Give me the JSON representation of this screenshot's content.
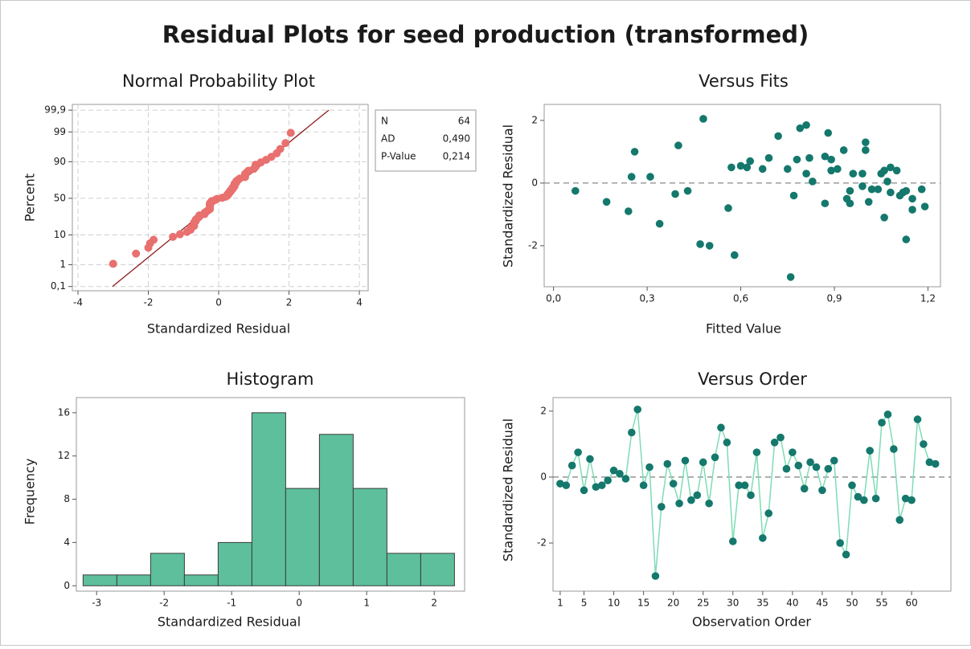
{
  "title": "Residual Plots for seed production (transformed)",
  "chart_data": [
    {
      "type": "probability",
      "title": "Normal Probability Plot",
      "xlabel": "Standardized Residual",
      "ylabel": "Percent",
      "yscale": "probability",
      "grid": true,
      "color": "#e8706f",
      "fit_color": "#8b1a1a",
      "xlim": [
        -4.16,
        4.25
      ],
      "xticks": [
        -4,
        -2,
        0,
        2,
        4
      ],
      "ylim": [
        0.06,
        99.95
      ],
      "yticks": [
        {
          "value": 0.1,
          "label": "0,1"
        },
        1,
        10,
        50,
        90,
        99,
        {
          "value": 99.9,
          "label": "99,9"
        }
      ],
      "x": [
        -3.0,
        -2.35,
        -2.0,
        -1.95,
        -1.85,
        -1.3,
        -1.1,
        -0.9,
        -0.8,
        -0.8,
        -0.7,
        -0.7,
        -0.7,
        -0.65,
        -0.65,
        -0.6,
        -0.55,
        -0.55,
        -0.4,
        -0.4,
        -0.35,
        -0.3,
        -0.25,
        -0.25,
        -0.25,
        -0.25,
        -0.25,
        -0.25,
        -0.2,
        -0.2,
        -0.1,
        -0.05,
        0.1,
        0.2,
        0.25,
        0.25,
        0.3,
        0.3,
        0.35,
        0.35,
        0.4,
        0.4,
        0.45,
        0.45,
        0.45,
        0.5,
        0.5,
        0.55,
        0.6,
        0.75,
        0.75,
        0.75,
        0.8,
        0.85,
        1.0,
        1.05,
        1.05,
        1.2,
        1.35,
        1.5,
        1.65,
        1.75,
        1.9,
        2.05
      ],
      "values": [
        1.09,
        2.64,
        4.19,
        5.75,
        7.3,
        8.85,
        10.4,
        11.96,
        13.51,
        15.06,
        16.61,
        18.17,
        19.72,
        21.27,
        22.83,
        24.38,
        25.93,
        27.48,
        29.04,
        30.59,
        32.14,
        33.7,
        35.25,
        36.8,
        38.35,
        39.91,
        41.46,
        43.01,
        44.57,
        46.12,
        47.67,
        49.22,
        50.78,
        52.33,
        53.88,
        55.43,
        56.99,
        58.54,
        60.09,
        61.65,
        63.2,
        64.75,
        66.3,
        67.86,
        69.41,
        70.96,
        72.52,
        74.07,
        75.62,
        77.17,
        78.73,
        80.28,
        81.83,
        83.39,
        84.94,
        86.49,
        88.04,
        89.6,
        91.15,
        92.7,
        94.25,
        95.81,
        97.36,
        98.91
      ],
      "fit_line": {
        "x": [
          -3.02,
          3.13
        ],
        "values": [
          0.1,
          99.9
        ]
      },
      "stats": [
        {
          "name": "N",
          "value": 64
        },
        {
          "name": "AD",
          "value": 0.49,
          "label": "0,490"
        },
        {
          "name": "P-Value",
          "value": 0.214,
          "label": "0,214"
        }
      ]
    },
    {
      "type": "scatter",
      "title": "Versus Fits",
      "xlabel": "Fitted Value",
      "ylabel": "Standardized Residual",
      "color": "#14786c",
      "ref_line": 0,
      "xlim": [
        -0.03,
        1.24
      ],
      "xticks": [
        {
          "value": 0,
          "label": "0,0"
        },
        {
          "value": 0.3,
          "label": "0,3"
        },
        {
          "value": 0.6,
          "label": "0,6"
        },
        {
          "value": 0.9,
          "label": "0,9"
        },
        {
          "value": 1.2,
          "label": "1,2"
        }
      ],
      "ylim": [
        -3.31,
        2.51
      ],
      "yticks": [
        -2,
        0,
        2
      ],
      "x": [
        0.07,
        0.17,
        0.24,
        0.25,
        0.26,
        0.31,
        0.34,
        0.39,
        0.4,
        0.43,
        0.47,
        0.48,
        0.5,
        0.56,
        0.57,
        0.58,
        0.6,
        0.62,
        0.63,
        0.67,
        0.69,
        0.72,
        0.75,
        0.76,
        0.77,
        0.78,
        0.79,
        0.81,
        0.81,
        0.82,
        0.83,
        0.87,
        0.87,
        0.88,
        0.89,
        0.89,
        0.91,
        0.93,
        0.94,
        0.95,
        0.95,
        0.96,
        0.99,
        0.99,
        1.0,
        1.0,
        1.01,
        1.02,
        1.04,
        1.05,
        1.06,
        1.06,
        1.07,
        1.08,
        1.08,
        1.1,
        1.11,
        1.12,
        1.13,
        1.13,
        1.15,
        1.15,
        1.18,
        1.19
      ],
      "values": [
        -0.25,
        -0.6,
        -0.9,
        0.2,
        1.0,
        0.2,
        -1.3,
        -0.35,
        1.2,
        -0.25,
        -1.95,
        2.05,
        -2.0,
        -0.8,
        0.5,
        -2.3,
        0.55,
        0.5,
        0.7,
        0.45,
        0.8,
        1.5,
        0.45,
        -3.0,
        -0.4,
        0.75,
        1.75,
        1.85,
        0.3,
        0.8,
        0.05,
        -0.65,
        0.85,
        1.6,
        0.4,
        0.75,
        0.45,
        1.05,
        -0.5,
        -0.65,
        -0.25,
        0.3,
        0.3,
        -0.1,
        1.05,
        1.3,
        -0.6,
        -0.2,
        -0.2,
        0.3,
        -1.1,
        0.4,
        0.05,
        0.5,
        -0.3,
        0.4,
        -0.4,
        -0.3,
        -1.8,
        -0.25,
        -0.5,
        -0.85,
        -0.2,
        -0.75
      ]
    },
    {
      "type": "histogram",
      "title": "Histogram",
      "xlabel": "Standardized Residual",
      "ylabel": "Frequency",
      "color": "#5dbf9b",
      "edge_color": "#3c3c3c",
      "xlim": [
        -3.3,
        2.45
      ],
      "xticks": [
        -3,
        -2,
        -1,
        0,
        1,
        2
      ],
      "ylim": [
        -0.5,
        17.4
      ],
      "yticks": [
        0,
        4,
        8,
        12,
        16
      ],
      "bins": [
        -3.2,
        -2.7,
        -2.2,
        -1.7,
        -1.2,
        -0.7,
        -0.2,
        0.3,
        0.8,
        1.3,
        1.8,
        2.3
      ],
      "values": [
        1,
        1,
        3,
        1,
        4,
        16,
        9,
        14,
        9,
        3,
        3
      ]
    },
    {
      "type": "line",
      "title": "Versus Order",
      "xlabel": "Observation Order",
      "ylabel": "Standardized Residual",
      "color": "#14786c",
      "line_color": "#7fdcb6",
      "ref_line": 0,
      "xlim": [
        -0.2,
        66.6
      ],
      "xticks": [
        1,
        5,
        10,
        15,
        20,
        25,
        30,
        35,
        40,
        45,
        50,
        55,
        60
      ],
      "ylim": [
        -3.46,
        2.41
      ],
      "yticks": [
        -2,
        0,
        2
      ],
      "x": [
        1,
        2,
        3,
        4,
        5,
        6,
        7,
        8,
        9,
        10,
        11,
        12,
        13,
        14,
        15,
        16,
        17,
        18,
        19,
        20,
        21,
        22,
        23,
        24,
        25,
        26,
        27,
        28,
        29,
        30,
        31,
        32,
        33,
        34,
        35,
        36,
        37,
        38,
        39,
        40,
        41,
        42,
        43,
        44,
        45,
        46,
        47,
        48,
        49,
        50,
        51,
        52,
        53,
        54,
        55,
        56,
        57,
        58,
        59,
        60,
        61,
        62,
        63,
        64
      ],
      "values": [
        -0.2,
        -0.25,
        0.35,
        0.75,
        -0.4,
        0.55,
        -0.3,
        -0.25,
        -0.1,
        0.2,
        0.1,
        -0.05,
        1.35,
        2.05,
        -0.25,
        0.3,
        -3.0,
        -0.9,
        0.4,
        -0.2,
        -0.8,
        0.5,
        -0.7,
        -0.55,
        0.45,
        -0.8,
        0.6,
        1.5,
        1.05,
        -1.95,
        -0.25,
        -0.25,
        -0.55,
        0.75,
        -1.85,
        -1.1,
        1.05,
        1.2,
        0.25,
        0.75,
        0.35,
        -0.35,
        0.45,
        0.3,
        -0.4,
        0.25,
        0.5,
        -2.0,
        -2.35,
        -0.25,
        -0.6,
        -0.7,
        0.8,
        -0.65,
        1.65,
        1.9,
        0.85,
        -1.3,
        -0.65,
        -0.7,
        1.75,
        1.0,
        0.45,
        0.4
      ]
    }
  ]
}
